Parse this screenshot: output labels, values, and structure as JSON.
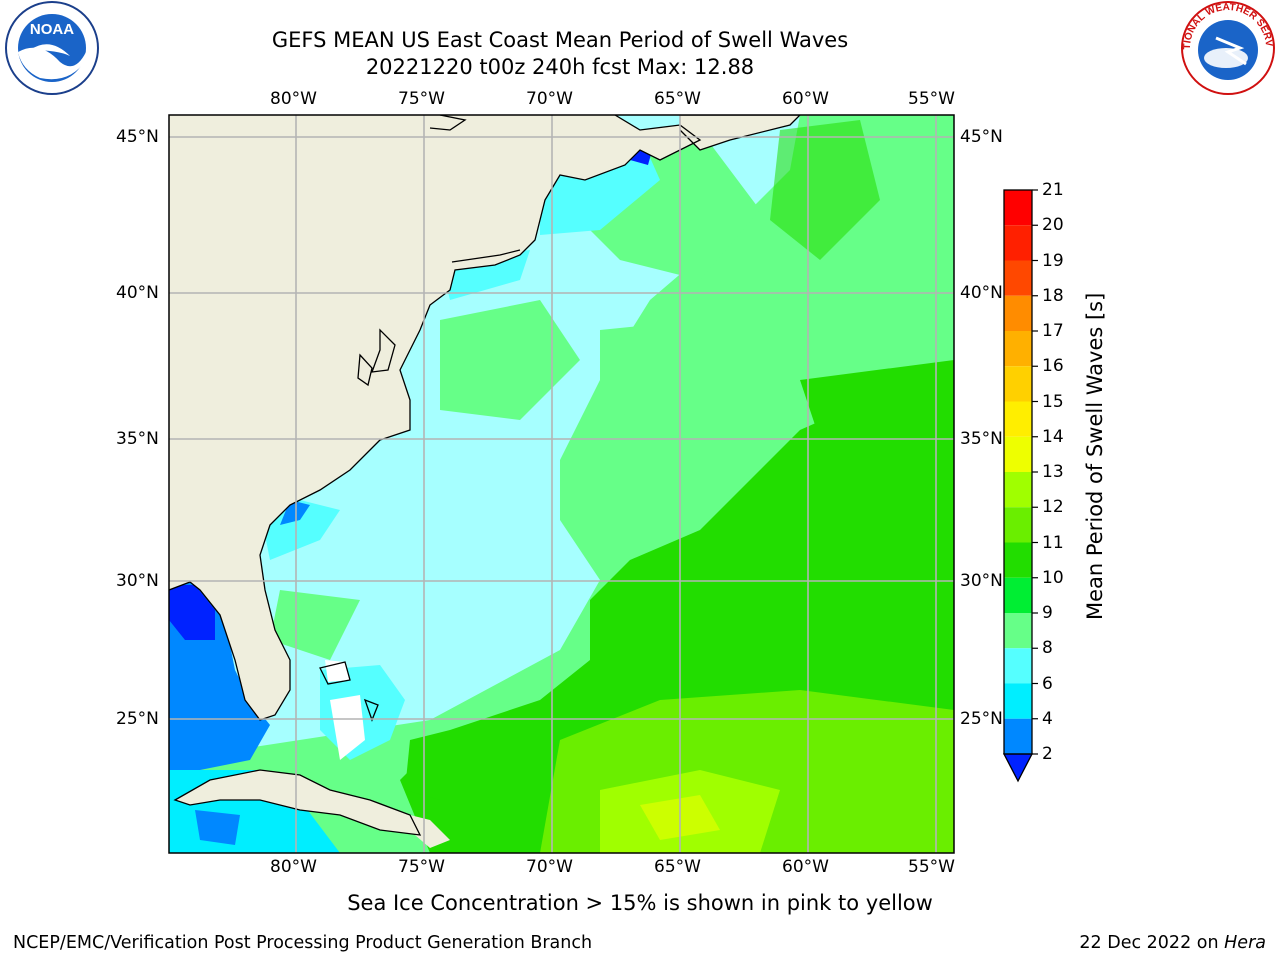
{
  "title": {
    "line1": "GEFS MEAN US East Coast Mean Period of Swell Waves",
    "line2": "20221220 t00z 240h fcst   Max: 12.88"
  },
  "axes": {
    "lon_labels": [
      "80°W",
      "75°W",
      "70°W",
      "65°W",
      "60°W",
      "55°W"
    ],
    "lat_labels": [
      "45°N",
      "40°N",
      "35°N",
      "30°N",
      "25°N"
    ]
  },
  "colorbar": {
    "label": "Mean Period of Swell Waves [s]",
    "ticks": [
      "21",
      "20",
      "19",
      "18",
      "17",
      "16",
      "15",
      "14",
      "13",
      "12",
      "11",
      "10",
      "9",
      "8",
      "6",
      "4",
      "2"
    ],
    "colors": [
      "#ff0000",
      "#ff2000",
      "#ff4800",
      "#ff6a00",
      "#ff8c00",
      "#ffb000",
      "#ffd000",
      "#ffee00",
      "#eeff00",
      "#ccff00",
      "#a0ff00",
      "#6aee00",
      "#22dd00",
      "#00ee33",
      "#66ff88",
      "#a6ffff",
      "#55ffff",
      "#00eeff",
      "#0088ff",
      "#0022ff"
    ]
  },
  "subtitle": "Sea Ice Concentration > 15% is shown in pink to yellow",
  "footer": {
    "credit": "NCEP/EMC/Verification Post Processing Product Generation Branch",
    "date": "22 Dec 2022 on",
    "machine": "Hera"
  },
  "logos": {
    "left": "noaa-logo",
    "right": "national-weather-service-logo",
    "nws_text": "NATIONAL WEATHER SERVICE"
  },
  "palette": {
    "land": "#efeedd",
    "grid": "#b4b4b4",
    "coast": "#000000"
  }
}
